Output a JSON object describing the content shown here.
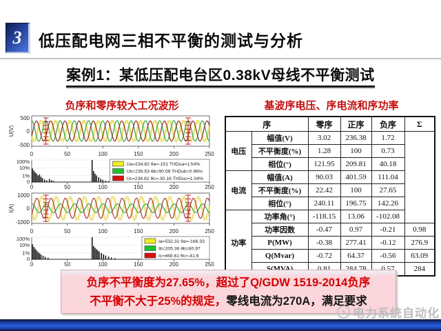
{
  "slide": {
    "badge": "3",
    "title": "低压配电网三相不平衡的测试与分析",
    "subtitle": "案例1：某低压配电台区0.38kV母线不平衡测试"
  },
  "left_panel": {
    "title": "负序和零序较大工况波形"
  },
  "right_panel": {
    "title": "基波序电压、序电流和序功率",
    "table": {
      "headers": [
        "序",
        "零序",
        "正序",
        "负序",
        "Σ"
      ],
      "groups": [
        {
          "label": "电压",
          "rows": [
            {
              "label": "幅值(V)",
              "values": [
                "3.02",
                "236.38",
                "1.72"
              ]
            },
            {
              "label": "不平衡度(%)",
              "values": [
                "1.28",
                "100",
                "0.73"
              ]
            },
            {
              "label": "相位(°)",
              "values": [
                "121.95",
                "209.81",
                "40.18"
              ]
            }
          ]
        },
        {
          "label": "电流",
          "rows": [
            {
              "label": "幅值(A)",
              "values": [
                "90.03",
                "401.59",
                "111.04"
              ]
            },
            {
              "label": "不平衡度(%)",
              "values": [
                "22.42",
                "100",
                "27.65"
              ]
            },
            {
              "label": "相位(°)",
              "values": [
                "240.11",
                "196.75",
                "142.26"
              ]
            }
          ]
        },
        {
          "label": "功率",
          "rows": [
            {
              "label": "功率角(°)",
              "values": [
                "-118.15",
                "13.06",
                "-102.08"
              ],
              "sum": ""
            },
            {
              "label": "功率因数",
              "values": [
                "-0.47",
                "0.97",
                "-0.21"
              ],
              "sum": "0.98"
            },
            {
              "label": "P(MW)",
              "values": [
                "-0.38",
                "277.41",
                "-0.12"
              ],
              "sum": "276.9"
            },
            {
              "label": "Q(Mvar)",
              "values": [
                "-0.72",
                "64.37",
                "-0.56"
              ],
              "sum": "63.09"
            },
            {
              "label": "S(MVA)",
              "values": [
                "0.81",
                "284.78",
                "0.57"
              ],
              "sum": "284"
            }
          ]
        }
      ]
    }
  },
  "conclusion": {
    "line1": "负序不平衡度为27.65%，超过了Q/GDW 1519-2014负序",
    "line2_red": "不平衡不大于25%的规定，",
    "line2_black": "零线电流为270A，满足要求"
  },
  "watermark": "电力系统自动化",
  "colors": {
    "accent_red": "#c40e0e",
    "conclusion_text_red": "#d40000",
    "conclusion_bg": "#fbd5da",
    "badge_blue": "#27439b",
    "bottom_bar_blue": "#2c60e2",
    "legend_yellow": "#f2ef1d",
    "legend_green": "#1fc32b",
    "legend_red": "#d90f0f"
  },
  "chart_data": [
    {
      "id": "voltage-waveform",
      "type": "line",
      "ylabel": "U(V)",
      "y_ticks": [
        "500",
        "0",
        "-500"
      ],
      "y_range": [
        -500,
        500
      ],
      "x_ticks": [
        "0",
        "50",
        "100",
        "150",
        "200",
        "250"
      ],
      "x_range": [
        0,
        250
      ],
      "cycles": 12.5,
      "cursors": [
        20,
        220
      ],
      "series": [
        {
          "name": "Ua",
          "color": "#e8dd66",
          "peak": 332,
          "phase_deg": -151,
          "width": 3
        },
        {
          "name": "Ub",
          "color": "#2fa83c",
          "peak": 339,
          "phase_deg": 90.59,
          "width": 1.2
        },
        {
          "name": "Uc",
          "color": "#93291f",
          "peak": 332,
          "phase_deg": -30.16,
          "width": 1.2
        }
      ]
    },
    {
      "id": "voltage-spectrum",
      "type": "bar",
      "y_ticks": [
        "100%",
        "10%",
        "1%",
        "0"
      ],
      "x_ticks": [
        "0",
        "50",
        "100",
        "150",
        "200",
        "250"
      ],
      "x_range": [
        0,
        250
      ],
      "legend_x_frac": 0.44,
      "legend": [
        {
          "color": "#f2ef1d",
          "label": "Ua=234.82 θa=-151 THDua=1.54%"
        },
        {
          "color": "#1fc32b",
          "label": "Ub=239.53 θb=90.59 THDub=0.96%"
        },
        {
          "color": "#d90f0f",
          "label": "Uc=234.82 θc=-30.16 THDuc=1.04%"
        }
      ],
      "bars": [
        [
          1,
          0.62
        ],
        [
          3,
          0.52
        ],
        [
          5,
          0.44
        ],
        [
          7,
          0.38
        ],
        [
          9,
          0.3
        ],
        [
          11,
          0.34
        ],
        [
          13,
          0.24
        ],
        [
          15,
          0.18
        ],
        [
          18,
          0.12
        ],
        [
          21,
          0.08
        ],
        [
          25,
          0.14
        ],
        [
          28,
          0.08
        ],
        [
          31,
          0.05
        ],
        [
          85,
          1.0
        ],
        [
          87,
          0.5
        ],
        [
          89,
          0.38
        ],
        [
          91,
          0.3
        ],
        [
          94,
          0.22
        ],
        [
          97,
          0.15
        ],
        [
          100,
          0.1
        ],
        [
          104,
          0.06
        ],
        [
          108,
          0.04
        ],
        [
          150,
          0.03
        ]
      ]
    },
    {
      "id": "current-waveform",
      "type": "line",
      "ylabel": "I(A)",
      "y_ticks": [
        "1000",
        "0",
        "-1000"
      ],
      "y_range": [
        -1000,
        1000
      ],
      "x_ticks": [
        "0",
        "50",
        "100",
        "150",
        "200",
        "250"
      ],
      "x_range": [
        0,
        250
      ],
      "cycles": 12.5,
      "cursors": [
        20,
        220
      ],
      "series": [
        {
          "name": "Ia",
          "color": "#ece27a",
          "peak": 753,
          "phase_deg": -166.33,
          "width": 3
        },
        {
          "name": "Ib",
          "color": "#2fa83c",
          "peak": 290,
          "phase_deg": 80.97,
          "width": 1.2
        },
        {
          "name": "Ic",
          "color": "#a8392b",
          "peak": 663,
          "phase_deg": -41.6,
          "width": 1.2
        }
      ]
    },
    {
      "id": "current-spectrum",
      "type": "bar",
      "y_ticks": [
        "100%",
        "10%",
        "1%",
        "0"
      ],
      "x_ticks": [
        "0",
        "50",
        "100",
        "150",
        "200",
        "250"
      ],
      "x_range": [
        0,
        250
      ],
      "legend_x_frac": 0.62,
      "legend": [
        {
          "color": "#f2ef1d",
          "label": "Ia=532.31 θa=-166.33"
        },
        {
          "color": "#1fc32b",
          "label": "Ib=205.36 θb=80.97"
        },
        {
          "color": "#d90f0f",
          "label": "Ic=468.61 θc=-41.6"
        }
      ],
      "bars": [
        [
          1,
          0.68
        ],
        [
          3,
          0.56
        ],
        [
          5,
          0.48
        ],
        [
          7,
          0.4
        ],
        [
          9,
          0.33
        ],
        [
          11,
          0.27
        ],
        [
          13,
          0.22
        ],
        [
          16,
          0.16
        ],
        [
          19,
          0.11
        ],
        [
          23,
          0.07
        ],
        [
          85,
          1.0
        ],
        [
          87,
          0.6
        ],
        [
          89,
          0.52
        ],
        [
          91,
          0.46
        ],
        [
          93,
          0.4
        ],
        [
          95,
          0.34
        ],
        [
          98,
          0.28
        ],
        [
          101,
          0.22
        ],
        [
          104,
          0.17
        ],
        [
          108,
          0.12
        ],
        [
          112,
          0.08
        ],
        [
          117,
          0.05
        ],
        [
          166,
          0.18
        ],
        [
          169,
          0.24
        ],
        [
          172,
          0.2
        ],
        [
          175,
          0.14
        ],
        [
          178,
          0.09
        ]
      ]
    }
  ]
}
